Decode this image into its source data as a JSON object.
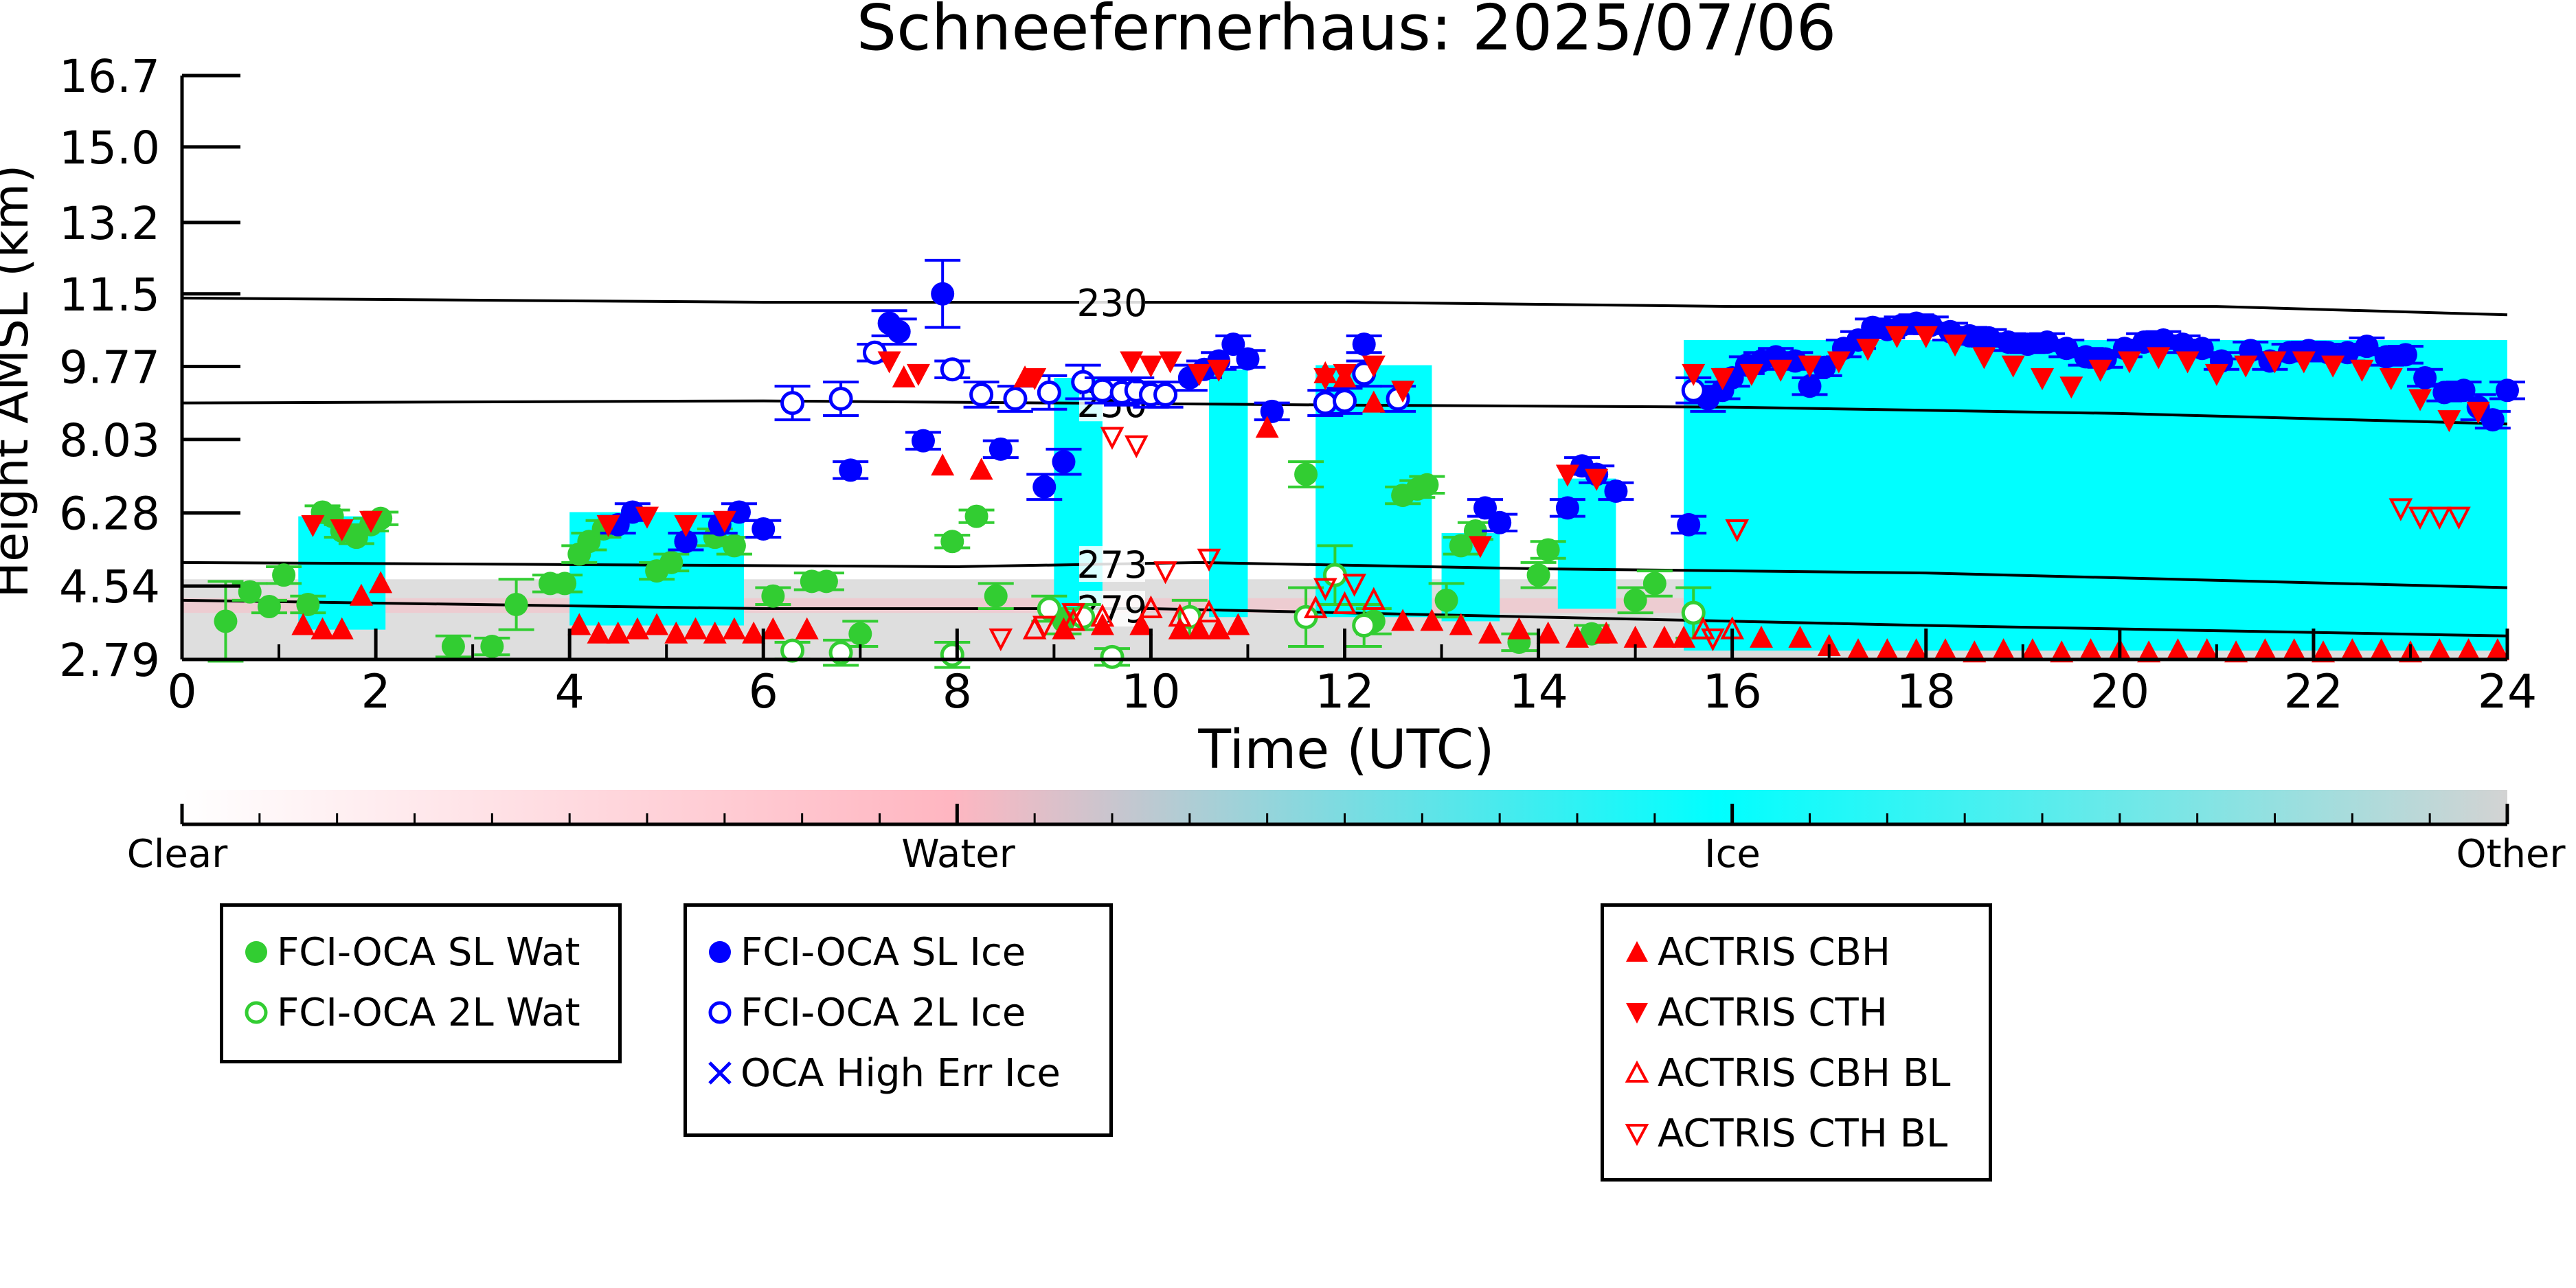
{
  "chart_data": {
    "type": "scatter",
    "title": "Schneefernerhaus: 2025/07/06",
    "xlabel": "Time (UTC)",
    "ylabel": "Height AMSL (km)",
    "xlim": [
      0,
      24
    ],
    "ylim": [
      2.79,
      16.7
    ],
    "x_ticks": [
      "0",
      "2",
      "4",
      "6",
      "8",
      "10",
      "12",
      "14",
      "16",
      "18",
      "20",
      "22",
      "24"
    ],
    "y_ticks": [
      "2.79",
      "4.54",
      "6.28",
      "8.03",
      "9.77",
      "11.5",
      "13.2",
      "15.0",
      "16.7"
    ],
    "y_tick_values": [
      2.79,
      4.54,
      6.28,
      8.03,
      9.77,
      11.5,
      13.2,
      15.0,
      16.7
    ],
    "colorbar": {
      "labels": [
        "Clear",
        "Water",
        "Ice",
        "Other"
      ],
      "colors": [
        "#ffffff",
        "#ffb6c1",
        "#00ffff",
        "#d3d3d3"
      ]
    },
    "colors": {
      "water": "#32cd32",
      "ice": "#0000ff",
      "actris": "#ff0000",
      "background_cloud": "#00ffff",
      "background_other": "#d3d3d3",
      "background_water": "#ffb6c1"
    },
    "isotherms": [
      {
        "label": "230",
        "x": [
          0,
          6,
          12,
          16,
          21,
          24
        ],
        "y": [
          11.4,
          11.3,
          11.3,
          11.2,
          11.2,
          11.0
        ]
      },
      {
        "label": "250",
        "x": [
          0,
          6,
          12,
          16,
          20,
          24
        ],
        "y": [
          8.9,
          8.95,
          8.85,
          8.8,
          8.65,
          8.4
        ]
      },
      {
        "label": "273",
        "x": [
          0,
          8,
          10.5,
          14,
          18,
          24
        ],
        "y": [
          5.1,
          5.0,
          5.1,
          4.95,
          4.85,
          4.5
        ]
      },
      {
        "label": "279",
        "x": [
          0,
          6,
          10,
          14,
          18,
          24
        ],
        "y": [
          4.2,
          4.0,
          4.0,
          3.8,
          3.6,
          3.35
        ]
      }
    ],
    "isotherm_label_x": 9.6,
    "cloud_regions": [
      {
        "x0": 1.2,
        "x1": 2.1,
        "y0": 3.5,
        "y1": 6.2
      },
      {
        "x0": 4.0,
        "x1": 5.8,
        "y0": 3.6,
        "y1": 6.3
      },
      {
        "x0": 9.0,
        "x1": 9.5,
        "y0": 3.9,
        "y1": 9.5
      },
      {
        "x0": 10.6,
        "x1": 11.0,
        "y0": 3.8,
        "y1": 9.7
      },
      {
        "x0": 11.7,
        "x1": 12.9,
        "y0": 3.8,
        "y1": 9.8
      },
      {
        "x0": 13.0,
        "x1": 13.6,
        "y0": 3.7,
        "y1": 5.8
      },
      {
        "x0": 14.2,
        "x1": 14.8,
        "y0": 4.0,
        "y1": 7.1
      },
      {
        "x0": 15.5,
        "x1": 24.0,
        "y0": 3.0,
        "y1": 10.4
      }
    ],
    "series": [
      {
        "name": "FCI-OCA SL Wat",
        "marker": "circle-filled",
        "color": "#32cd32",
        "x": [
          0.45,
          0.7,
          0.9,
          1.05,
          1.3,
          1.45,
          1.55,
          1.65,
          1.8,
          1.95,
          2.05,
          2.8,
          3.2,
          3.45,
          3.8,
          3.95,
          4.1,
          4.2,
          4.35,
          4.9,
          5.05,
          5.2,
          5.5,
          5.7,
          6.1,
          6.5,
          6.65,
          7.0,
          7.95,
          8.2,
          8.4,
          9.1,
          11.6,
          12.3,
          12.6,
          12.75,
          12.85,
          13.05,
          13.2,
          13.35,
          13.8,
          14.0,
          14.1,
          14.55,
          15.0,
          15.2
        ],
        "y": [
          3.7,
          4.4,
          4.05,
          4.8,
          4.1,
          6.3,
          6.2,
          5.85,
          5.7,
          6.0,
          6.15,
          3.1,
          3.1,
          4.1,
          4.6,
          4.6,
          5.3,
          5.6,
          5.9,
          4.9,
          5.1,
          5.6,
          5.7,
          5.5,
          4.3,
          4.65,
          4.65,
          3.4,
          5.6,
          6.2,
          4.3,
          3.7,
          7.2,
          3.7,
          6.7,
          6.85,
          6.95,
          4.2,
          5.5,
          5.85,
          3.2,
          4.8,
          5.4,
          3.4,
          4.2,
          4.6
        ],
        "err": [
          0.95,
          0.2,
          0.15,
          0.2,
          0.2,
          0.15,
          0.15,
          0.15,
          0.15,
          0.15,
          0.15,
          0.25,
          0.2,
          0.6,
          0.2,
          0.2,
          0.2,
          0.2,
          0.2,
          0.2,
          0.2,
          0.2,
          0.2,
          0.2,
          0.2,
          0.2,
          0.2,
          0.3,
          0.15,
          0.15,
          0.3,
          0.3,
          0.3,
          0.3,
          0.2,
          0.2,
          0.2,
          0.4,
          0.2,
          0.2,
          0.2,
          0.3,
          0.2,
          0.2,
          0.3,
          0.3
        ]
      },
      {
        "name": "FCI-OCA 2L Wat",
        "marker": "circle-open",
        "color": "#32cd32",
        "x": [
          6.3,
          6.8,
          7.95,
          8.95,
          9.3,
          9.6,
          10.4,
          11.6,
          11.9,
          12.2,
          15.6
        ],
        "y": [
          3.0,
          2.95,
          2.9,
          4.0,
          3.8,
          2.85,
          3.8,
          3.8,
          4.8,
          3.6,
          3.9
        ],
        "err": [
          0.2,
          0.3,
          0.3,
          0.3,
          0.3,
          0.2,
          0.4,
          0.7,
          0.7,
          0.5,
          0.6
        ]
      },
      {
        "name": "FCI-OCA SL Ice",
        "marker": "circle-filled",
        "color": "#0000ff",
        "x": [
          4.5,
          4.65,
          5.2,
          5.55,
          5.75,
          6.0,
          6.9,
          7.3,
          7.4,
          7.65,
          7.85,
          8.45,
          8.9,
          9.1,
          10.4,
          10.55,
          10.7,
          10.85,
          11.0,
          11.25,
          12.2,
          13.45,
          13.6,
          14.3,
          14.45,
          14.6,
          14.8,
          15.55,
          15.75,
          15.9,
          16.0,
          16.15,
          16.3,
          16.45,
          16.65,
          16.8,
          16.95,
          17.15,
          17.3,
          17.45,
          17.6,
          17.75,
          17.9,
          18.05,
          18.25,
          18.45,
          18.65,
          18.85,
          19.05,
          19.25,
          19.45,
          19.65,
          19.85,
          20.05,
          20.25,
          20.45,
          20.65,
          20.85,
          21.05,
          21.35,
          21.55,
          21.75,
          21.95,
          22.15,
          22.35,
          22.55,
          22.75,
          22.95,
          23.15,
          23.35,
          23.55,
          23.7,
          23.85,
          24.0
        ],
        "y": [
          6.0,
          6.3,
          5.6,
          6.0,
          6.3,
          5.9,
          7.3,
          10.8,
          10.6,
          8.0,
          11.5,
          7.8,
          6.9,
          7.5,
          9.5,
          9.7,
          9.9,
          10.3,
          9.95,
          8.7,
          10.3,
          6.4,
          6.05,
          6.4,
          7.4,
          7.2,
          6.8,
          6.0,
          9.0,
          9.2,
          9.5,
          9.8,
          9.9,
          10.0,
          9.9,
          9.3,
          9.75,
          10.2,
          10.4,
          10.7,
          10.65,
          10.75,
          10.8,
          10.75,
          10.6,
          10.5,
          10.45,
          10.35,
          10.3,
          10.35,
          10.2,
          10.0,
          9.95,
          10.2,
          10.35,
          10.4,
          10.3,
          10.2,
          9.9,
          10.15,
          9.9,
          10.1,
          10.15,
          10.1,
          10.1,
          10.25,
          10.0,
          10.05,
          9.5,
          9.15,
          9.2,
          8.8,
          8.5,
          9.2
        ],
        "err": [
          0.2,
          0.2,
          0.2,
          0.2,
          0.2,
          0.2,
          0.2,
          0.3,
          0.3,
          0.2,
          0.8,
          0.2,
          0.3,
          0.3,
          0.3,
          0.2,
          0.2,
          0.2,
          0.2,
          0.2,
          0.2,
          0.2,
          0.2,
          0.2,
          0.2,
          0.2,
          0.2,
          0.2,
          0.3,
          0.2,
          0.2,
          0.2,
          0.2,
          0.2,
          0.2,
          0.2,
          0.2,
          0.2,
          0.2,
          0.2,
          0.2,
          0.2,
          0.2,
          0.2,
          0.2,
          0.2,
          0.2,
          0.2,
          0.2,
          0.2,
          0.2,
          0.2,
          0.2,
          0.2,
          0.2,
          0.2,
          0.2,
          0.2,
          0.2,
          0.2,
          0.2,
          0.2,
          0.2,
          0.2,
          0.2,
          0.2,
          0.2,
          0.2,
          0.2,
          0.2,
          0.2,
          0.3,
          0.2,
          0.2
        ]
      },
      {
        "name": "FCI-OCA 2L Ice",
        "marker": "circle-open",
        "color": "#0000ff",
        "x": [
          6.3,
          6.8,
          7.15,
          7.95,
          8.25,
          8.6,
          8.95,
          9.3,
          9.5,
          9.7,
          9.85,
          10.0,
          10.15,
          11.8,
          12.0,
          12.2,
          12.55,
          15.6
        ],
        "y": [
          8.9,
          9.0,
          10.1,
          9.7,
          9.1,
          9.0,
          9.15,
          9.4,
          9.2,
          9.15,
          9.2,
          9.1,
          9.1,
          8.9,
          8.95,
          9.6,
          9.0,
          9.2
        ],
        "err": [
          0.4,
          0.4,
          0.2,
          0.2,
          0.3,
          0.3,
          0.4,
          0.4,
          0.3,
          0.3,
          0.3,
          0.3,
          0.3,
          0.3,
          0.3,
          0.3,
          0.3,
          0.3
        ]
      },
      {
        "name": "OCA High Err Ice",
        "marker": "x",
        "color": "#0000ff",
        "x": [],
        "y": []
      },
      {
        "name": "ACTRIS CBH",
        "marker": "triangle-up-filled",
        "color": "#ff0000",
        "x": [
          1.25,
          1.45,
          1.65,
          1.85,
          2.05,
          4.1,
          4.3,
          4.5,
          4.7,
          4.9,
          5.1,
          5.3,
          5.5,
          5.7,
          5.9,
          6.1,
          6.45,
          7.45,
          7.85,
          8.25,
          8.7,
          9.1,
          9.5,
          9.9,
          10.3,
          10.5,
          10.7,
          10.9,
          11.2,
          11.8,
          12.0,
          12.3,
          12.6,
          12.9,
          13.2,
          13.5,
          13.8,
          14.1,
          14.4,
          14.7,
          15.0,
          15.3,
          15.5,
          16.3,
          16.7,
          17.0,
          17.3,
          17.6,
          17.9,
          18.2,
          18.5,
          18.8,
          19.1,
          19.4,
          19.7,
          20.0,
          20.3,
          20.6,
          20.9,
          21.2,
          21.5,
          21.8,
          22.1,
          22.4,
          22.7,
          23.0,
          23.3,
          23.6,
          23.9
        ],
        "y": [
          3.6,
          3.5,
          3.5,
          4.3,
          4.6,
          3.6,
          3.4,
          3.4,
          3.5,
          3.6,
          3.4,
          3.5,
          3.4,
          3.5,
          3.4,
          3.5,
          3.5,
          9.5,
          7.4,
          7.3,
          9.5,
          3.5,
          3.6,
          3.6,
          3.5,
          3.5,
          3.5,
          3.6,
          8.3,
          9.6,
          9.5,
          8.9,
          3.7,
          3.7,
          3.6,
          3.4,
          3.5,
          3.4,
          3.3,
          3.4,
          3.3,
          3.3,
          3.3,
          3.3,
          3.3,
          3.1,
          3.0,
          3.0,
          3.0,
          3.0,
          2.95,
          3.0,
          3.0,
          2.95,
          3.0,
          3.0,
          2.95,
          3.0,
          3.0,
          2.95,
          3.0,
          3.0,
          2.95,
          3.0,
          3.0,
          2.95,
          3.0,
          3.0,
          3.0
        ]
      },
      {
        "name": "ACTRIS CTH",
        "marker": "triangle-down-filled",
        "color": "#ff0000",
        "x": [
          1.35,
          1.65,
          1.95,
          4.4,
          4.8,
          5.2,
          5.6,
          7.3,
          7.6,
          8.8,
          9.8,
          10.0,
          10.2,
          10.5,
          10.7,
          11.8,
          12.0,
          12.3,
          12.6,
          13.4,
          14.3,
          14.6,
          15.6,
          15.9,
          16.2,
          16.5,
          16.8,
          17.1,
          17.4,
          17.7,
          18.0,
          18.3,
          18.6,
          18.9,
          19.2,
          19.5,
          19.8,
          20.1,
          20.4,
          20.7,
          21.0,
          21.3,
          21.6,
          21.9,
          22.2,
          22.5,
          22.8,
          23.1,
          23.4,
          23.7
        ],
        "y": [
          6.0,
          5.9,
          6.1,
          6.0,
          6.2,
          6.0,
          6.1,
          9.9,
          9.6,
          9.5,
          9.9,
          9.8,
          9.9,
          9.6,
          9.7,
          9.5,
          9.6,
          9.8,
          9.2,
          5.5,
          7.2,
          7.1,
          9.6,
          9.5,
          9.6,
          9.7,
          9.8,
          9.9,
          10.2,
          10.5,
          10.5,
          10.3,
          10.0,
          9.8,
          9.5,
          9.3,
          9.7,
          9.9,
          10.0,
          9.9,
          9.6,
          9.8,
          9.9,
          9.9,
          9.8,
          9.7,
          9.5,
          9.0,
          8.5,
          8.7
        ]
      },
      {
        "name": "ACTRIS CBH BL",
        "marker": "triangle-up-open",
        "color": "#ff0000",
        "x": [
          8.8,
          9.2,
          9.5,
          10.0,
          10.3,
          10.6,
          11.7,
          12.0,
          12.3,
          15.7,
          16.0
        ],
        "y": [
          3.5,
          3.7,
          3.8,
          4.0,
          3.8,
          3.9,
          4.0,
          4.1,
          4.2,
          3.5,
          3.5
        ]
      },
      {
        "name": "ACTRIS CTH BL",
        "marker": "triangle-down-open",
        "color": "#ff0000",
        "x": [
          8.45,
          8.9,
          9.2,
          9.6,
          9.85,
          10.15,
          10.6,
          11.8,
          12.1,
          15.8,
          16.05,
          22.9,
          23.1,
          23.3,
          23.5
        ],
        "y": [
          3.3,
          3.6,
          3.9,
          8.1,
          7.9,
          4.9,
          5.2,
          4.5,
          4.6,
          3.3,
          5.9,
          6.4,
          6.2,
          6.2,
          6.2
        ]
      }
    ]
  }
}
